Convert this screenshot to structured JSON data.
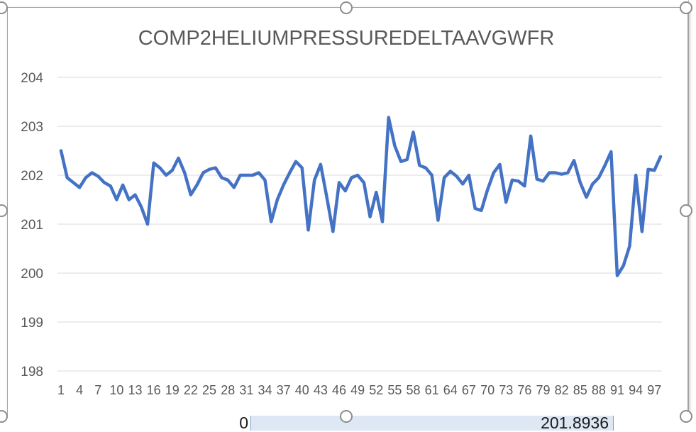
{
  "chart_data": {
    "type": "line",
    "title": "COMP2HELIUMPRESSUREDELTAAVGWFR",
    "xlabel": "",
    "ylabel": "",
    "ylim": [
      198,
      204
    ],
    "y_ticks": [
      198,
      199,
      200,
      201,
      202,
      203,
      204
    ],
    "x_tick_labels": [
      "1",
      "4",
      "7",
      "10",
      "13",
      "16",
      "19",
      "22",
      "25",
      "28",
      "31",
      "34",
      "37",
      "40",
      "43",
      "46",
      "49",
      "52",
      "55",
      "58",
      "61",
      "64",
      "67",
      "70",
      "73",
      "76",
      "79",
      "82",
      "85",
      "88",
      "91",
      "94",
      "97"
    ],
    "grid": true,
    "legend": "none",
    "line_color": "#4472c4",
    "x": [
      1,
      2,
      3,
      4,
      5,
      6,
      7,
      8,
      9,
      10,
      11,
      12,
      13,
      14,
      15,
      16,
      17,
      18,
      19,
      20,
      21,
      22,
      23,
      24,
      25,
      26,
      27,
      28,
      29,
      30,
      31,
      32,
      33,
      34,
      35,
      36,
      37,
      38,
      39,
      40,
      41,
      42,
      43,
      44,
      45,
      46,
      47,
      48,
      49,
      50,
      51,
      52,
      53,
      54,
      55,
      56,
      57,
      58,
      59,
      60,
      61,
      62,
      63,
      64,
      65,
      66,
      67,
      68,
      69,
      70,
      71,
      72,
      73,
      74,
      75,
      76,
      77,
      78,
      79,
      80,
      81,
      82,
      83,
      84,
      85,
      86,
      87,
      88,
      89,
      90,
      91,
      92,
      93,
      94,
      95,
      96,
      97,
      98
    ],
    "series": [
      {
        "values": [
          202.5,
          201.95,
          201.85,
          201.75,
          201.95,
          202.05,
          201.98,
          201.85,
          201.78,
          201.5,
          201.8,
          201.5,
          201.6,
          201.35,
          201.0,
          202.25,
          202.15,
          202.0,
          202.1,
          202.35,
          202.05,
          201.6,
          201.8,
          202.05,
          202.12,
          202.15,
          201.95,
          201.9,
          201.75,
          202.0,
          202.0,
          202.0,
          202.05,
          201.9,
          201.05,
          201.5,
          201.8,
          202.05,
          202.28,
          202.15,
          200.88,
          201.9,
          202.22,
          201.55,
          200.85,
          201.85,
          201.68,
          201.95,
          202.0,
          201.85,
          201.15,
          201.65,
          201.05,
          203.18,
          202.6,
          202.28,
          202.32,
          202.88,
          202.2,
          202.15,
          202.0,
          201.08,
          201.95,
          202.08,
          201.98,
          201.82,
          202.0,
          201.32,
          201.28,
          201.7,
          202.05,
          202.22,
          201.45,
          201.9,
          201.88,
          201.78,
          202.8,
          201.92,
          201.88,
          202.05,
          202.05,
          202.02,
          202.05,
          202.3,
          201.85,
          201.55,
          201.82,
          201.95,
          202.2,
          202.48,
          199.95,
          200.15,
          200.55,
          202.0,
          200.85,
          202.12,
          202.1,
          202.38
        ]
      }
    ]
  },
  "sheet": {
    "cell_left_value": "0",
    "cell_right_value": "201.8936"
  }
}
